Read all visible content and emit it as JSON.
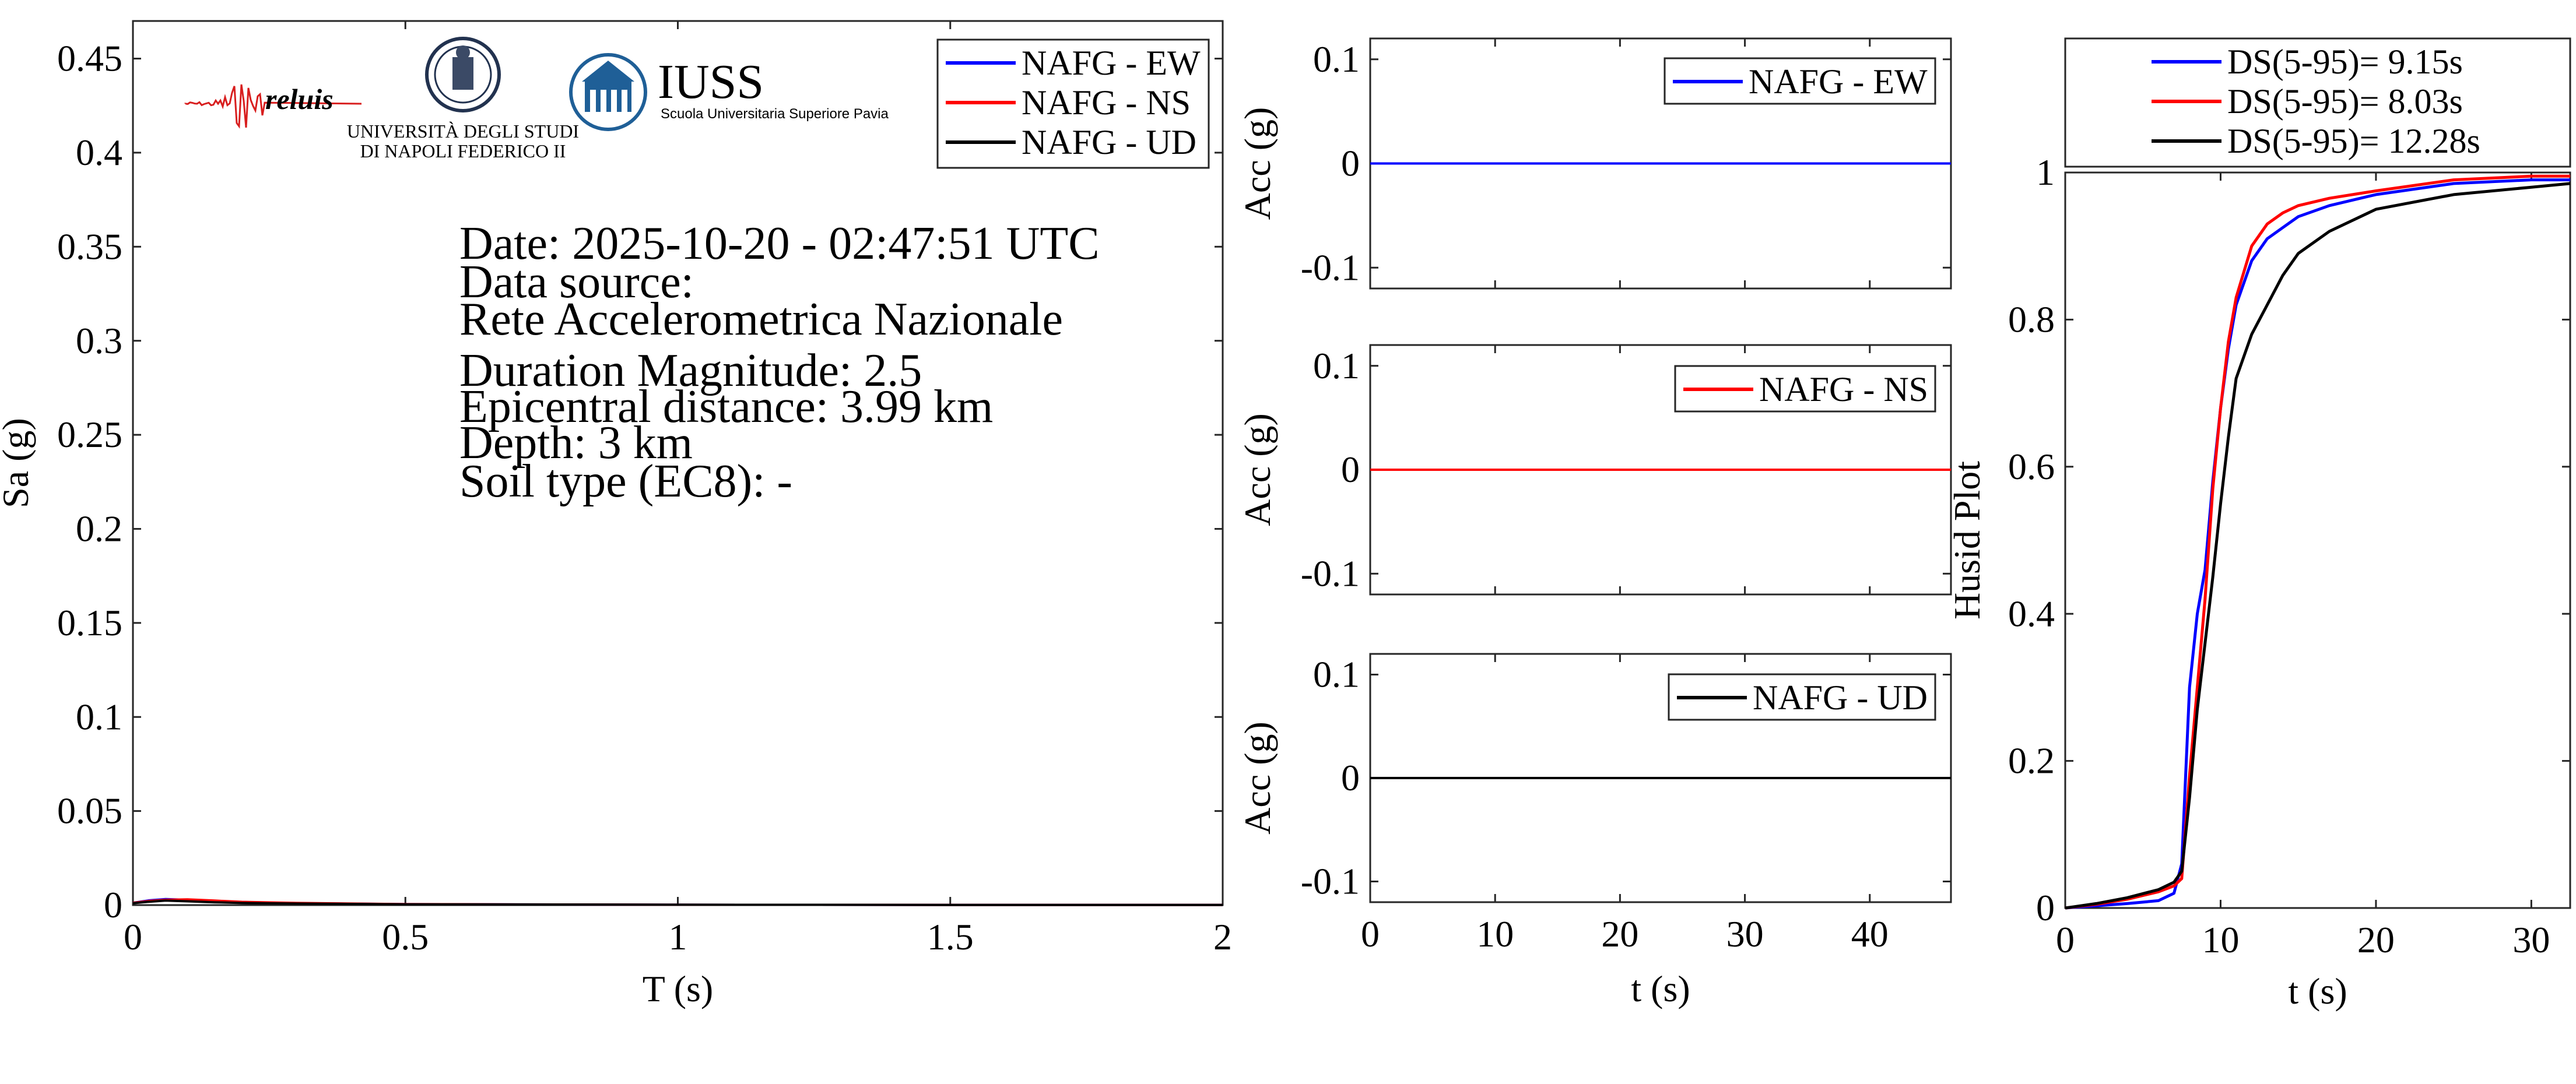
{
  "colors": {
    "ew": "#0000ff",
    "ns": "#ff0000",
    "ud": "#000000",
    "axis": "#262626",
    "iuss": "#1f5f97",
    "reluis_red": "#d81e1e",
    "reluis_text": "#1b2f7a"
  },
  "logos": {
    "reluis": {
      "text": "reluis",
      "icon": "seismogram-icon"
    },
    "unina": {
      "line1": "UNIVERSITÀ DEGLI STUDI",
      "line2": "DI NAPOLI FEDERICO II",
      "icon": "university-seal-icon"
    },
    "iuss": {
      "name": "IUSS",
      "subtitle": "Scuola Universitaria Superiore Pavia",
      "icon": "iuss-building-icon"
    }
  },
  "info": {
    "date": "Date: 2025-10-20 - 02:47:51 UTC",
    "source_label": "Data source:",
    "source": "Rete Accelerometrica Nazionale",
    "magnitude": "Duration Magnitude: 2.5",
    "distance": "Epicentral distance: 3.99 km",
    "depth": "Depth: 3 km",
    "soil": "Soil type (EC8): -"
  },
  "chart_data": [
    {
      "id": "spectrum",
      "type": "line",
      "xlabel": "T (s)",
      "ylabel": "Sa (g)",
      "xlim": [
        0,
        2
      ],
      "ylim": [
        0,
        0.47
      ],
      "xticks": [
        0,
        0.5,
        1,
        1.5,
        2
      ],
      "xtick_labels": [
        "0",
        "0.5",
        "1",
        "1.5",
        "2"
      ],
      "yticks": [
        0,
        0.05,
        0.1,
        0.15,
        0.2,
        0.25,
        0.3,
        0.35,
        0.4,
        0.45
      ],
      "ytick_labels": [
        "0",
        "0.05",
        "0.1",
        "0.15",
        "0.2",
        "0.25",
        "0.3",
        "0.35",
        "0.4",
        "0.45"
      ],
      "legend_position": "top-right",
      "series": [
        {
          "name": "NAFG - EW",
          "color": "#0000ff",
          "x": [
            0,
            0.03,
            0.06,
            0.1,
            0.15,
            0.2,
            0.3,
            0.5,
            1,
            1.5,
            2
          ],
          "y": [
            0.0012,
            0.0025,
            0.0032,
            0.0028,
            0.0022,
            0.0016,
            0.001,
            0.0005,
            0.0002,
            0.0001,
            0.0001
          ]
        },
        {
          "name": "NAFG - NS",
          "color": "#ff0000",
          "x": [
            0,
            0.03,
            0.06,
            0.1,
            0.15,
            0.2,
            0.3,
            0.5,
            1,
            1.5,
            2
          ],
          "y": [
            0.0012,
            0.0022,
            0.0028,
            0.003,
            0.0024,
            0.0017,
            0.0011,
            0.0005,
            0.0002,
            0.0001,
            0.0001
          ]
        },
        {
          "name": "NAFG - UD",
          "color": "#000000",
          "x": [
            0,
            0.03,
            0.06,
            0.1,
            0.15,
            0.2,
            0.3,
            0.5,
            1,
            1.5,
            2
          ],
          "y": [
            0.001,
            0.0018,
            0.0024,
            0.002,
            0.0015,
            0.0011,
            0.0008,
            0.0004,
            0.0002,
            0.0001,
            0.0001
          ]
        }
      ]
    },
    {
      "id": "acc-ew",
      "type": "line",
      "xlabel": "",
      "ylabel": "Acc (g)",
      "xlim": [
        0,
        46.5
      ],
      "ylim": [
        -0.12,
        0.12
      ],
      "yticks": [
        -0.1,
        0,
        0.1
      ],
      "ytick_labels": [
        "-0.1",
        "0",
        "0.1"
      ],
      "xticks": [
        0,
        10,
        20,
        30,
        40
      ],
      "legend_position": "top-right",
      "series": [
        {
          "name": "NAFG - EW",
          "color": "#0000ff",
          "x": [
            0,
            46.5
          ],
          "y": [
            0,
            0
          ]
        }
      ]
    },
    {
      "id": "acc-ns",
      "type": "line",
      "xlabel": "",
      "ylabel": "Acc (g)",
      "xlim": [
        0,
        46.5
      ],
      "ylim": [
        -0.12,
        0.12
      ],
      "yticks": [
        -0.1,
        0,
        0.1
      ],
      "ytick_labels": [
        "-0.1",
        "0",
        "0.1"
      ],
      "xticks": [
        0,
        10,
        20,
        30,
        40
      ],
      "legend_position": "top-right",
      "series": [
        {
          "name": "NAFG - NS",
          "color": "#ff0000",
          "x": [
            0,
            46.5
          ],
          "y": [
            0,
            0
          ]
        }
      ]
    },
    {
      "id": "acc-ud",
      "type": "line",
      "xlabel": "t (s)",
      "ylabel": "Acc (g)",
      "xlim": [
        0,
        46.5
      ],
      "ylim": [
        -0.12,
        0.12
      ],
      "yticks": [
        -0.1,
        0,
        0.1
      ],
      "ytick_labels": [
        "-0.1",
        "0",
        "0.1"
      ],
      "xticks": [
        0,
        10,
        20,
        30,
        40
      ],
      "xtick_labels": [
        "0",
        "10",
        "20",
        "30",
        "40"
      ],
      "legend_position": "top-right",
      "series": [
        {
          "name": "NAFG - UD",
          "color": "#000000",
          "x": [
            0,
            46.5
          ],
          "y": [
            0,
            0
          ]
        }
      ]
    },
    {
      "id": "husid",
      "type": "line",
      "xlabel": "t (s)",
      "ylabel": "Husid Plot",
      "xlim": [
        0,
        32.5
      ],
      "ylim": [
        0,
        1
      ],
      "xticks": [
        0,
        10,
        20,
        30
      ],
      "xtick_labels": [
        "0",
        "10",
        "20",
        "30"
      ],
      "yticks": [
        0,
        0.2,
        0.4,
        0.6,
        0.8,
        1
      ],
      "ytick_labels": [
        "0",
        "0.2",
        "0.4",
        "0.6",
        "0.8",
        "1"
      ],
      "legend_position": "outside-top",
      "series": [
        {
          "name": "DS(5-95)= 9.15s",
          "color": "#0000ff",
          "x": [
            0,
            2,
            4,
            6,
            7,
            7.5,
            8,
            8.5,
            9,
            9.5,
            10,
            10.5,
            11,
            12,
            13,
            14,
            15,
            17,
            20,
            25,
            30,
            32.5
          ],
          "y": [
            0,
            0.003,
            0.006,
            0.01,
            0.02,
            0.06,
            0.3,
            0.4,
            0.46,
            0.58,
            0.68,
            0.76,
            0.82,
            0.88,
            0.91,
            0.925,
            0.94,
            0.955,
            0.97,
            0.985,
            0.99,
            0.99
          ]
        },
        {
          "name": "DS(5-95)= 8.03s",
          "color": "#ff0000",
          "x": [
            0,
            2,
            4,
            6,
            7,
            7.5,
            8,
            8.5,
            9,
            9.5,
            10,
            10.5,
            11,
            12,
            13,
            14,
            15,
            17,
            20,
            25,
            30,
            32.5
          ],
          "y": [
            0,
            0.005,
            0.012,
            0.022,
            0.03,
            0.04,
            0.18,
            0.3,
            0.42,
            0.57,
            0.68,
            0.77,
            0.83,
            0.9,
            0.93,
            0.945,
            0.955,
            0.965,
            0.975,
            0.99,
            0.995,
            0.995
          ]
        },
        {
          "name": "DS(5-95)= 12.28s",
          "color": "#000000",
          "x": [
            0,
            2,
            4,
            6,
            7,
            7.5,
            8,
            8.5,
            9,
            9.5,
            10,
            10.5,
            11,
            12,
            13,
            14,
            15,
            17,
            20,
            25,
            30,
            32.5
          ],
          "y": [
            0,
            0.006,
            0.014,
            0.025,
            0.035,
            0.05,
            0.15,
            0.27,
            0.36,
            0.45,
            0.55,
            0.64,
            0.72,
            0.78,
            0.82,
            0.86,
            0.89,
            0.92,
            0.95,
            0.97,
            0.98,
            0.985
          ]
        }
      ]
    }
  ]
}
